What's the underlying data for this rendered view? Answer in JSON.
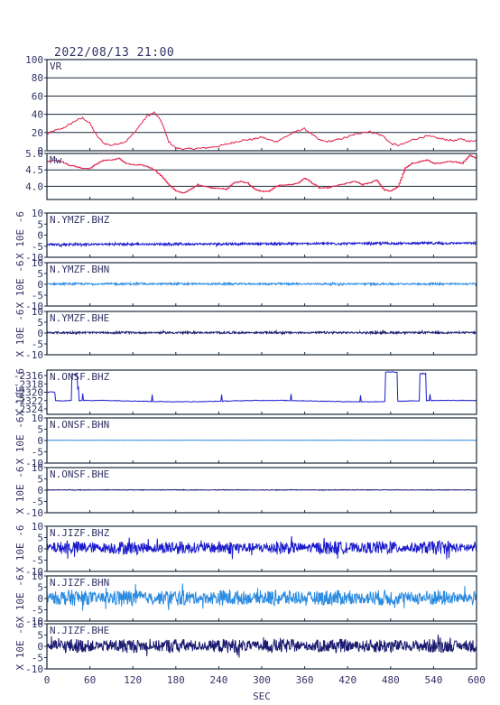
{
  "chart_data": [
    {
      "type": "line",
      "title": "2022/08/13 21:00",
      "label": "VR",
      "ylim": [
        0,
        100
      ],
      "yticks": [
        "0",
        "20",
        "40",
        "60",
        "80",
        "100"
      ],
      "grid": true,
      "color": "#e0204a",
      "x": [
        0,
        10,
        20,
        30,
        40,
        50,
        60,
        70,
        80,
        90,
        100,
        110,
        120,
        130,
        140,
        150,
        160,
        170,
        180,
        190,
        200,
        210,
        220,
        230,
        240,
        250,
        260,
        270,
        280,
        290,
        300,
        310,
        320,
        330,
        340,
        350,
        360,
        370,
        380,
        390,
        400,
        410,
        420,
        430,
        440,
        450,
        460,
        470,
        480,
        490,
        500,
        510,
        520,
        530,
        540,
        550,
        560,
        570,
        580,
        590,
        600
      ],
      "values": [
        18,
        22,
        24,
        28,
        33,
        36,
        30,
        16,
        8,
        6,
        8,
        10,
        18,
        28,
        38,
        42,
        32,
        10,
        3,
        2,
        2,
        2.5,
        3,
        4,
        5,
        7,
        9,
        11,
        12,
        13,
        15,
        12,
        10,
        14,
        18,
        22,
        24,
        18,
        12,
        10,
        11,
        13,
        15,
        18,
        20,
        21,
        19,
        16,
        8,
        6,
        8,
        12,
        14,
        16,
        15,
        13,
        12,
        11,
        13,
        10,
        12
      ]
    },
    {
      "type": "line",
      "label": "Mw",
      "ylim": [
        3.6,
        5.0
      ],
      "yticks": [
        "4.0",
        "4.5",
        "5.0"
      ],
      "grid": true,
      "color": "#e0204a",
      "x": [
        0,
        10,
        20,
        30,
        40,
        50,
        60,
        70,
        80,
        90,
        100,
        110,
        120,
        130,
        140,
        150,
        160,
        170,
        180,
        190,
        200,
        210,
        220,
        230,
        240,
        250,
        260,
        270,
        280,
        290,
        300,
        310,
        320,
        330,
        340,
        350,
        360,
        370,
        380,
        390,
        400,
        410,
        420,
        430,
        440,
        450,
        460,
        470,
        480,
        490,
        500,
        510,
        520,
        530,
        540,
        550,
        560,
        570,
        580,
        590,
        600
      ],
      "values": [
        4.75,
        4.8,
        4.75,
        4.65,
        4.6,
        4.55,
        4.55,
        4.7,
        4.8,
        4.8,
        4.85,
        4.7,
        4.65,
        4.65,
        4.6,
        4.5,
        4.3,
        4.05,
        3.85,
        3.8,
        3.9,
        4.05,
        4.0,
        3.95,
        3.95,
        3.9,
        4.1,
        4.15,
        4.1,
        3.9,
        3.85,
        3.85,
        4.0,
        4.05,
        4.05,
        4.1,
        4.25,
        4.1,
        3.95,
        3.95,
        4.0,
        4.05,
        4.1,
        4.15,
        4.05,
        4.1,
        4.2,
        3.9,
        3.85,
        4.0,
        4.55,
        4.7,
        4.75,
        4.8,
        4.7,
        4.7,
        4.75,
        4.75,
        4.7,
        4.95,
        4.85
      ]
    },
    {
      "type": "line",
      "label": "N.YMZF.BHZ",
      "ylabel": "X 10E -6",
      "ylim": [
        -10,
        10
      ],
      "yticks": [
        "-10",
        "-5",
        "0",
        "5",
        "10"
      ],
      "color": "#1c1ccc",
      "baseline": [
        -4.2,
        -3.6
      ],
      "amplitude": 0.6
    },
    {
      "type": "line",
      "label": "N.YMZF.BHN",
      "ylabel": "X 10E -6",
      "ylim": [
        -10,
        10
      ],
      "yticks": [
        "-10",
        "-5",
        "0",
        "5",
        "10"
      ],
      "color": "#2a8be0",
      "baseline": [
        0.2,
        0.2
      ],
      "amplitude": 0.5
    },
    {
      "type": "line",
      "label": "N.YMZF.BHE",
      "ylabel": "X 10E -6",
      "ylim": [
        -10,
        10
      ],
      "yticks": [
        "-10",
        "-5",
        "0",
        "5",
        "10"
      ],
      "color": "#1a1a70",
      "baseline": [
        0.2,
        0.2
      ],
      "amplitude": 0.5
    },
    {
      "type": "line",
      "label": "N.ONSF.BHZ",
      "ylabel": "X 10E -6",
      "ylim": [
        -2325,
        -2315
      ],
      "yticks": [
        "-2316",
        "-2318",
        "-2320",
        "-2322",
        "-2324"
      ],
      "color": "#1c1ccc"
    },
    {
      "type": "line",
      "label": "N.ONSF.BHN",
      "ylabel": "X 10E -6",
      "ylim": [
        -10,
        10
      ],
      "yticks": [
        "-10",
        "-5",
        "0",
        "5",
        "10"
      ],
      "color": "#2a8be0",
      "baseline": [
        0.1,
        0.1
      ],
      "amplitude": 0.05
    },
    {
      "type": "line",
      "label": "N.ONSF.BHE",
      "ylabel": "X 10E -6",
      "ylim": [
        -10,
        10
      ],
      "yticks": [
        "-10",
        "-5",
        "0",
        "5",
        "10"
      ],
      "color": "#1a1a70",
      "baseline": [
        0.1,
        0.1
      ],
      "amplitude": 0.15
    },
    {
      "type": "line",
      "label": "N.JIZF.BHZ",
      "ylabel": "X 10E -6",
      "ylim": [
        -10,
        10
      ],
      "yticks": [
        "-10",
        "-5",
        "0",
        "5",
        "10"
      ],
      "color": "#1c1ccc",
      "baseline": [
        0.5,
        0.5
      ],
      "amplitude": 3.0
    },
    {
      "type": "line",
      "label": "N.JIZF.BHN",
      "ylabel": "X 10E -6",
      "ylim": [
        -10,
        10
      ],
      "yticks": [
        "-10",
        "-5",
        "0",
        "5",
        "10"
      ],
      "color": "#2a8be0",
      "baseline": [
        0.3,
        0.3
      ],
      "amplitude": 3.6
    },
    {
      "type": "line",
      "label": "N.JIZF.BHE",
      "ylabel": "X 10E -6",
      "ylim": [
        -10,
        10
      ],
      "yticks": [
        "-10",
        "-5",
        "0",
        "5",
        "10"
      ],
      "color": "#1a1a70",
      "baseline": [
        0.2,
        0.2
      ],
      "amplitude": 3.2
    }
  ],
  "xaxis": {
    "label": "SEC",
    "xlim": [
      0,
      600
    ],
    "ticks": [
      0,
      60,
      120,
      180,
      240,
      300,
      360,
      420,
      480,
      540,
      600
    ]
  },
  "colors": {
    "frame": "#1a2a3a",
    "text": "#333366"
  }
}
